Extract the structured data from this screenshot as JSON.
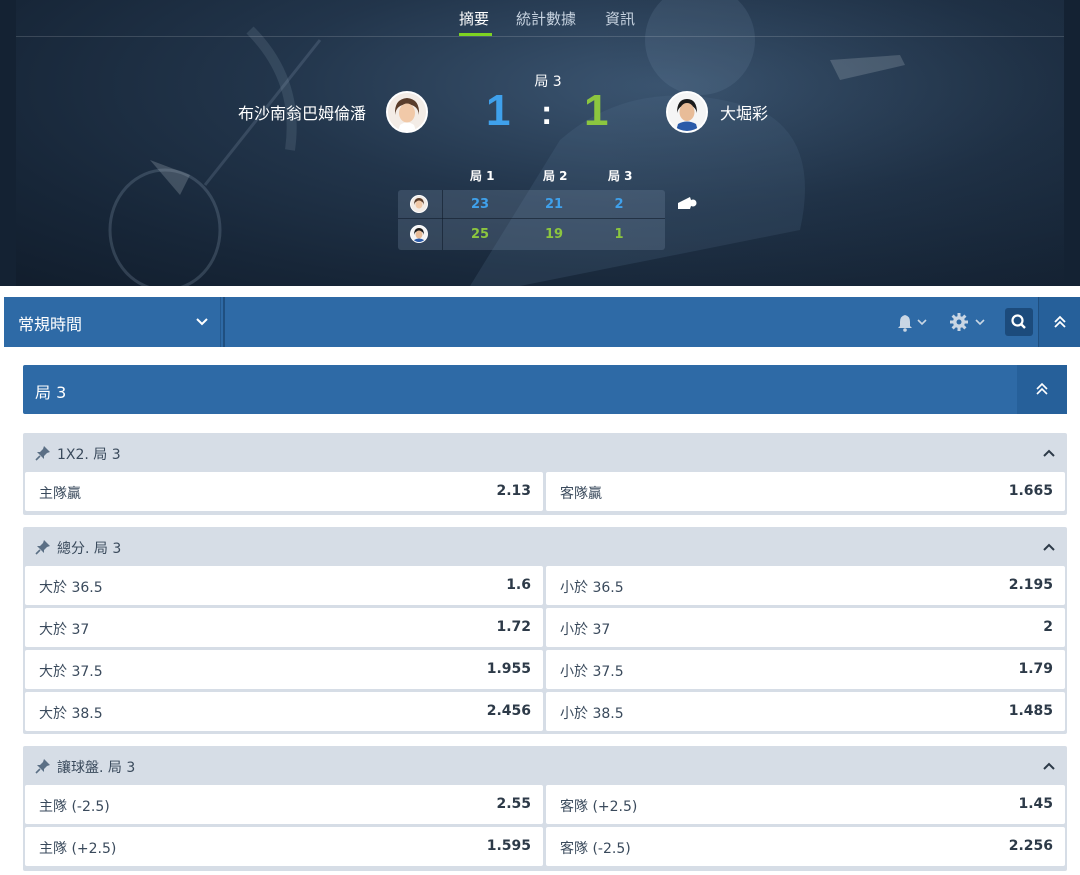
{
  "nav": {
    "tabs": [
      {
        "label": "摘要",
        "active": true
      },
      {
        "label": "統計數據",
        "active": false
      },
      {
        "label": "資訊",
        "active": false
      }
    ]
  },
  "match": {
    "current_game_label": "局 3",
    "home": {
      "name": "布沙南翁巴姆倫潘",
      "score": "1",
      "color": "#3fa1ec"
    },
    "away": {
      "name": "大堀彩",
      "score": "1",
      "color": "#8cc63f"
    },
    "colon": ":"
  },
  "scoreboard": {
    "headers": [
      "局 1",
      "局 2",
      "局 3"
    ],
    "home_scores": [
      "23",
      "21",
      "2"
    ],
    "away_scores": [
      "25",
      "19",
      "1"
    ],
    "serving_icon": "shuttlecock-icon"
  },
  "toolbar": {
    "period_label": "常規時間",
    "icons": [
      "bell-icon",
      "gear-icon",
      "search-icon",
      "double-chevron-up-icon"
    ]
  },
  "game_section": {
    "label": "局 3"
  },
  "markets": [
    {
      "title": "1X2. 局 3",
      "rows": [
        [
          {
            "label": "主隊贏",
            "odd": "2.13"
          },
          {
            "label": "客隊贏",
            "odd": "1.665"
          }
        ]
      ]
    },
    {
      "title": "總分. 局 3",
      "rows": [
        [
          {
            "label": "大於 36.5",
            "odd": "1.6"
          },
          {
            "label": "小於 36.5",
            "odd": "2.195"
          }
        ],
        [
          {
            "label": "大於 37",
            "odd": "1.72"
          },
          {
            "label": "小於 37",
            "odd": "2"
          }
        ],
        [
          {
            "label": "大於 37.5",
            "odd": "1.955"
          },
          {
            "label": "小於 37.5",
            "odd": "1.79"
          }
        ],
        [
          {
            "label": "大於 38.5",
            "odd": "2.456"
          },
          {
            "label": "小於 38.5",
            "odd": "1.485"
          }
        ]
      ]
    },
    {
      "title": "讓球盤. 局 3",
      "rows": [
        [
          {
            "label": "主隊 (-2.5)",
            "odd": "2.55"
          },
          {
            "label": "客隊 (+2.5)",
            "odd": "1.45"
          }
        ],
        [
          {
            "label": "主隊 (+2.5)",
            "odd": "1.595"
          },
          {
            "label": "客隊 (-2.5)",
            "odd": "2.256"
          }
        ]
      ]
    }
  ],
  "colors": {
    "accent_blue": "#2e6aa6",
    "tab_underline": "#7ed321",
    "group_bg": "#d6dde6"
  }
}
